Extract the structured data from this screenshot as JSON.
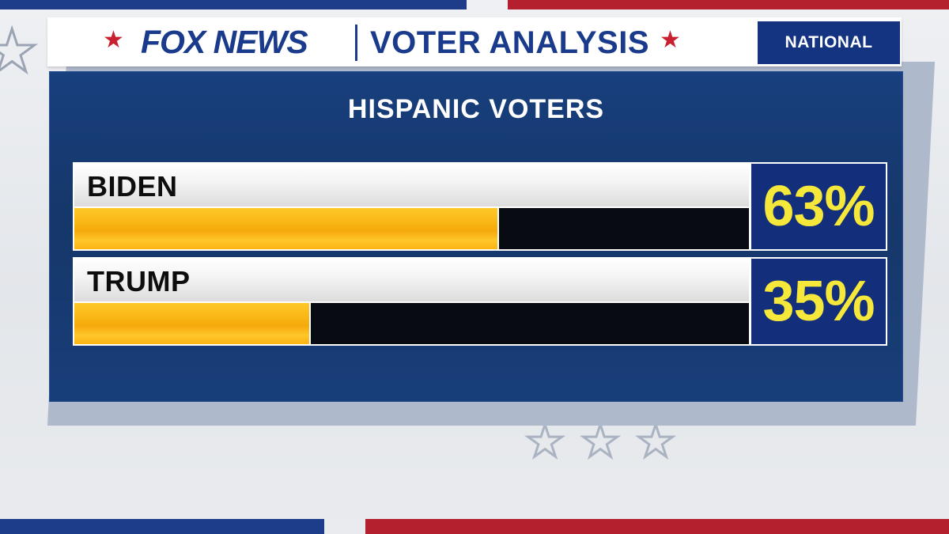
{
  "header": {
    "logo": "FOX NEWS",
    "title": "VOTER ANALYSIS",
    "region": "NATIONAL",
    "icons": [
      "star-icon",
      "fox-news-logo",
      "star-icon"
    ]
  },
  "colors": {
    "brand_blue": "#1a3a8c",
    "panel_blue": "#153769",
    "accent_red": "#c9202f",
    "bar_fill": "#f8b514",
    "bar_track": "#080b12",
    "percent_text": "#f5e83a"
  },
  "chart_data": {
    "type": "bar",
    "orientation": "horizontal",
    "title": "HISPANIC VOTERS",
    "categories": [
      "BIDEN",
      "TRUMP"
    ],
    "values": [
      63,
      35
    ],
    "labels": [
      "63%",
      "35%"
    ],
    "ylim": [
      0,
      100
    ],
    "unit": "%",
    "grid": false
  }
}
